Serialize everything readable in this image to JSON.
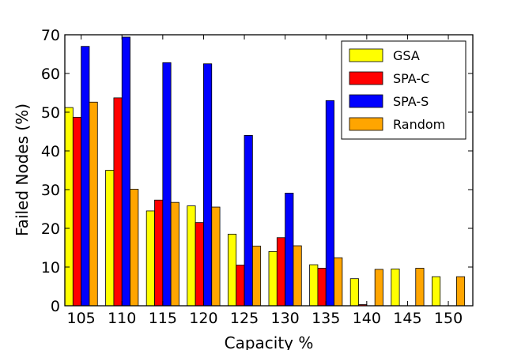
{
  "chart_data": {
    "type": "bar",
    "title": "",
    "xlabel": "Capacity %",
    "ylabel": "Failed Nodes (%)",
    "ylim": [
      0,
      70
    ],
    "yticks": [
      0,
      10,
      20,
      30,
      40,
      50,
      60,
      70
    ],
    "grid": false,
    "legend_position": "top-right",
    "categories": [
      "105",
      "110",
      "115",
      "120",
      "125",
      "130",
      "135",
      "140",
      "145",
      "150"
    ],
    "series": [
      {
        "name": "GSA",
        "color": "#ffff00",
        "values": [
          51.2,
          35.0,
          24.5,
          25.8,
          18.5,
          14.0,
          10.6,
          7.0,
          9.5,
          7.5
        ]
      },
      {
        "name": "SPA-C",
        "color": "#ff0000",
        "values": [
          48.7,
          53.7,
          27.3,
          21.5,
          10.5,
          17.6,
          9.7,
          0.3,
          0.0,
          0.0
        ]
      },
      {
        "name": "SPA-S",
        "color": "#0000ff",
        "values": [
          67.0,
          69.4,
          62.8,
          62.5,
          44.0,
          29.1,
          53.0,
          0.0,
          0.0,
          0.0
        ]
      },
      {
        "name": "Random",
        "color": "#ffa500",
        "values": [
          52.6,
          30.1,
          26.7,
          25.5,
          15.4,
          15.5,
          12.4,
          9.4,
          9.7,
          7.5
        ]
      }
    ]
  }
}
